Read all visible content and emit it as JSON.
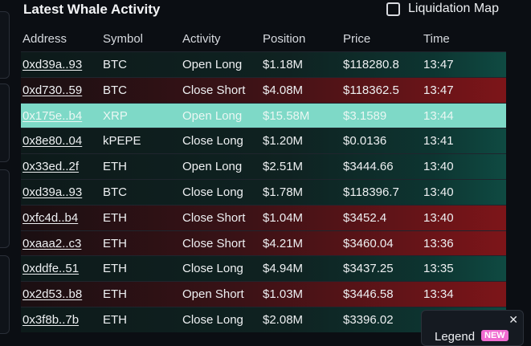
{
  "header": {
    "title": "Latest Whale Activity",
    "liquidation_map_label": "Liquidation Map"
  },
  "columns": [
    "Address",
    "Symbol",
    "Activity",
    "Position",
    "Price",
    "Time"
  ],
  "rows": [
    {
      "address": "0xd39a..93",
      "symbol": "BTC",
      "activity": "Open Long",
      "position": "$1.18M",
      "price": "$118280.8",
      "time": "13:47",
      "side": "long"
    },
    {
      "address": "0xd730..59",
      "symbol": "BTC",
      "activity": "Close Short",
      "position": "$4.08M",
      "price": "$118362.5",
      "time": "13:47",
      "side": "short"
    },
    {
      "address": "0x175e..b4",
      "symbol": "XRP",
      "activity": "Open Long",
      "position": "$15.58M",
      "price": "$3.1589",
      "time": "13:44",
      "side": "highlight"
    },
    {
      "address": "0x8e80..04",
      "symbol": "kPEPE",
      "activity": "Close Long",
      "position": "$1.20M",
      "price": "$0.0136",
      "time": "13:41",
      "side": "long"
    },
    {
      "address": "0x33ed..2f",
      "symbol": "ETH",
      "activity": "Open Long",
      "position": "$2.51M",
      "price": "$3444.66",
      "time": "13:40",
      "side": "long"
    },
    {
      "address": "0xd39a..93",
      "symbol": "BTC",
      "activity": "Close Long",
      "position": "$1.78M",
      "price": "$118396.7",
      "time": "13:40",
      "side": "long"
    },
    {
      "address": "0xfc4d..b4",
      "symbol": "ETH",
      "activity": "Close Short",
      "position": "$1.04M",
      "price": "$3452.4",
      "time": "13:40",
      "side": "short"
    },
    {
      "address": "0xaaa2..c3",
      "symbol": "ETH",
      "activity": "Close Short",
      "position": "$4.21M",
      "price": "$3460.04",
      "time": "13:36",
      "side": "short"
    },
    {
      "address": "0xddfe..51",
      "symbol": "ETH",
      "activity": "Close Long",
      "position": "$4.94M",
      "price": "$3437.25",
      "time": "13:35",
      "side": "long"
    },
    {
      "address": "0x2d53..b8",
      "symbol": "ETH",
      "activity": "Open Short",
      "position": "$1.03M",
      "price": "$3446.58",
      "time": "13:34",
      "side": "short"
    },
    {
      "address": "0x3f8b..7b",
      "symbol": "ETH",
      "activity": "Close Long",
      "position": "$2.08M",
      "price": "$3396.02",
      "time": "",
      "side": "long"
    }
  ],
  "legend": {
    "label": "Legend",
    "badge": "NEW",
    "close_symbol": "✕"
  }
}
